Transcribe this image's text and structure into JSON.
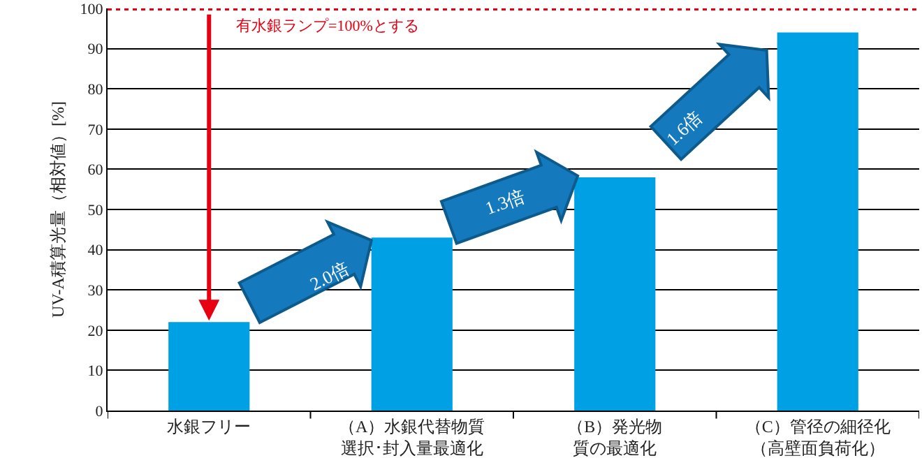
{
  "chart_data": {
    "type": "bar",
    "ylabel": "UV-A積算光量（相対値）[%]",
    "categories": [
      "水銀フリー",
      "（A）水銀代替物質選択･封入量最適化",
      "（B）発光物質の最適化",
      "（C）管径の細径化（高壁面負荷化）"
    ],
    "values": [
      22,
      43,
      58,
      94
    ],
    "color": "#00a0e4",
    "ylim": [
      0,
      100
    ],
    "yticks": [
      0,
      10,
      20,
      30,
      40,
      50,
      60,
      70,
      80,
      90,
      100
    ],
    "grid": "y",
    "ref_lines": [
      {
        "axis": "y",
        "value": 100,
        "label": "有水銀ランプ=100%とする",
        "color": "#e60012",
        "line_style": "dotted"
      }
    ],
    "annotations": [
      "2.0倍",
      "1.3倍",
      "1.6倍"
    ]
  }
}
